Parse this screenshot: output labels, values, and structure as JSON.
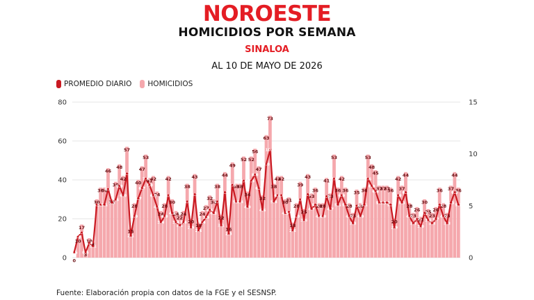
{
  "header": {
    "logo": "NOROESTE",
    "title": "HOMICIDIOS POR SEMANA",
    "subtitle": "SINALOA",
    "date": "AL 10 DE MAYO DE 2026"
  },
  "legend": {
    "line_label": "PROMEDIO DIARIO",
    "bar_label": "HOMICIDIOS"
  },
  "source": "Fuente: Elaboración propia con datos de la FGE y el SESNSP.",
  "colors": {
    "brand": "#e41d24",
    "line": "#c91a22",
    "bar": "#f5a8ad",
    "grid": "#e6e6e6"
  },
  "chart_data": {
    "type": "bar",
    "grid": true,
    "legend_position": "top-left",
    "left_axis": {
      "ylim": [
        0,
        80
      ],
      "ticks": [
        0,
        20,
        40,
        60,
        80
      ]
    },
    "right_axis": {
      "ylim": [
        0,
        15
      ],
      "ticks": [
        0,
        5,
        10,
        15
      ]
    },
    "series": [
      {
        "name": "HOMICIDIOS",
        "type": "bar",
        "axis": "left",
        "values": [
          0,
          10,
          17,
          3,
          10,
          8,
          30,
          36,
          36,
          46,
          30,
          39,
          48,
          42,
          57,
          15,
          28,
          40,
          47,
          53,
          41,
          42,
          34,
          24,
          28,
          42,
          30,
          24,
          22,
          24,
          38,
          20,
          43,
          18,
          24,
          27,
          32,
          30,
          38,
          22,
          44,
          16,
          49,
          38,
          38,
          52,
          34,
          52,
          56,
          47,
          32,
          63,
          73,
          38,
          42,
          42,
          30,
          31,
          18,
          28,
          39,
          25,
          43,
          33,
          36,
          28,
          28,
          41,
          33,
          53,
          36,
          42,
          36,
          28,
          23,
          35,
          28,
          36,
          53,
          48,
          45,
          37,
          37,
          37,
          36,
          20,
          42,
          37,
          44,
          28,
          23,
          26,
          21,
          30,
          25,
          23,
          26,
          36,
          28,
          23,
          37,
          44,
          36
        ]
      },
      {
        "name": "PROMEDIO DIARIO",
        "type": "line",
        "axis": "right",
        "values": [
          0.5,
          2.0,
          2.4,
          0.5,
          1.4,
          1.1,
          5.1,
          5.1,
          5.1,
          6.6,
          5.3,
          5.6,
          6.9,
          6.0,
          8.1,
          2.1,
          4.0,
          5.7,
          6.7,
          7.6,
          7.0,
          6.0,
          4.9,
          3.4,
          4.0,
          6.0,
          4.3,
          3.4,
          3.1,
          3.4,
          5.4,
          2.9,
          6.1,
          2.6,
          3.4,
          3.9,
          4.6,
          4.3,
          5.4,
          3.1,
          6.3,
          2.3,
          7.0,
          5.4,
          5.4,
          7.4,
          4.9,
          7.4,
          8.0,
          6.7,
          4.6,
          9.0,
          10.4,
          5.4,
          6.0,
          6.0,
          4.3,
          4.4,
          2.6,
          4.0,
          5.6,
          3.6,
          6.1,
          4.7,
          5.1,
          4.0,
          4.0,
          5.9,
          4.7,
          7.6,
          5.1,
          6.0,
          5.1,
          4.0,
          3.3,
          5.0,
          4.0,
          5.1,
          7.6,
          6.9,
          6.4,
          5.3,
          5.3,
          5.3,
          5.1,
          2.9,
          6.0,
          5.3,
          6.3,
          4.0,
          3.3,
          3.7,
          3.0,
          4.3,
          3.6,
          3.3,
          3.7,
          5.1,
          4.0,
          3.3,
          5.3,
          6.3,
          5.1
        ]
      }
    ]
  }
}
